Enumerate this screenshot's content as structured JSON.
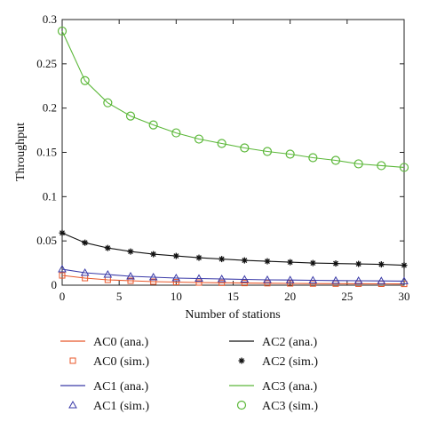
{
  "chart_data": {
    "type": "line",
    "title": "",
    "xlabel": "Number of stations",
    "ylabel": "Throughput",
    "xlim": [
      0,
      30
    ],
    "ylim": [
      0,
      0.3
    ],
    "grid": false,
    "legend_position": "bottom",
    "x_ticks": [
      "0",
      "5",
      "10",
      "15",
      "20",
      "25",
      "30"
    ],
    "y_ticks": [
      "0",
      "0.05",
      "0.1",
      "0.15",
      "0.2",
      "0.25",
      "0.3"
    ],
    "x": [
      0,
      2,
      4,
      6,
      8,
      10,
      12,
      14,
      16,
      18,
      20,
      22,
      24,
      26,
      28,
      30
    ],
    "series": [
      {
        "name": "AC0 (ana.)",
        "kind": "line",
        "color": "#e8572a",
        "values": [
          0.011,
          0.008,
          0.006,
          0.005,
          0.004,
          0.0035,
          0.003,
          0.0027,
          0.0024,
          0.0022,
          0.002,
          0.0018,
          0.0017,
          0.0016,
          0.0015,
          0.0014
        ]
      },
      {
        "name": "AC0 (sim.)",
        "kind": "marker",
        "marker": "square",
        "color": "#e8572a",
        "values": [
          0.011,
          0.008,
          0.006,
          0.005,
          0.004,
          0.0035,
          0.003,
          0.0027,
          0.0024,
          0.0022,
          0.002,
          0.0018,
          0.0017,
          0.0016,
          0.0015,
          0.0014
        ]
      },
      {
        "name": "AC1 (ana.)",
        "kind": "line",
        "color": "#3a3aa8",
        "values": [
          0.018,
          0.014,
          0.012,
          0.01,
          0.009,
          0.008,
          0.0075,
          0.007,
          0.0065,
          0.006,
          0.0058,
          0.0055,
          0.0052,
          0.005,
          0.0048,
          0.0046
        ]
      },
      {
        "name": "AC1 (sim.)",
        "kind": "marker",
        "marker": "triangle",
        "color": "#3a3aa8",
        "values": [
          0.018,
          0.014,
          0.012,
          0.01,
          0.009,
          0.008,
          0.0075,
          0.007,
          0.0065,
          0.006,
          0.0058,
          0.0055,
          0.0052,
          0.005,
          0.0048,
          0.0046
        ]
      },
      {
        "name": "AC2 (ana.)",
        "kind": "line",
        "color": "#111111",
        "values": [
          0.059,
          0.048,
          0.042,
          0.038,
          0.035,
          0.033,
          0.031,
          0.0295,
          0.028,
          0.027,
          0.026,
          0.025,
          0.0245,
          0.024,
          0.0235,
          0.0225
        ]
      },
      {
        "name": "AC2 (sim.)",
        "kind": "marker",
        "marker": "star",
        "color": "#111111",
        "values": [
          0.059,
          0.048,
          0.042,
          0.038,
          0.035,
          0.033,
          0.031,
          0.0295,
          0.028,
          0.027,
          0.026,
          0.025,
          0.0245,
          0.024,
          0.0235,
          0.0225
        ]
      },
      {
        "name": "AC3 (ana.)",
        "kind": "line",
        "color": "#5cb83a",
        "values": [
          0.287,
          0.231,
          0.206,
          0.191,
          0.181,
          0.172,
          0.165,
          0.16,
          0.155,
          0.151,
          0.148,
          0.144,
          0.141,
          0.137,
          0.135,
          0.133
        ]
      },
      {
        "name": "AC3 (sim.)",
        "kind": "marker",
        "marker": "circle",
        "color": "#5cb83a",
        "values": [
          0.287,
          0.231,
          0.206,
          0.191,
          0.181,
          0.172,
          0.165,
          0.16,
          0.155,
          0.151,
          0.148,
          0.144,
          0.141,
          0.137,
          0.135,
          0.133
        ]
      }
    ]
  }
}
